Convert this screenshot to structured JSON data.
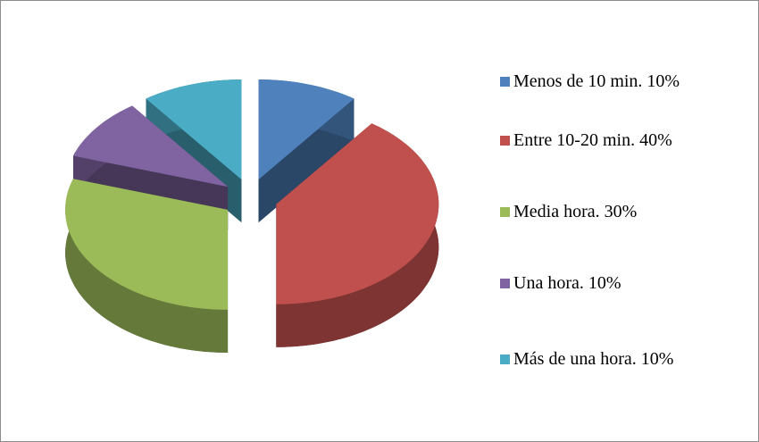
{
  "chart_data": {
    "type": "pie3d",
    "categories": [
      "Menos de 10 min. 10%",
      "Entre 10-20 min. 40%",
      "Media hora. 30%",
      "Una hora. 10%",
      "Más de una hora. 10%"
    ],
    "values": [
      10,
      40,
      30,
      10,
      10
    ],
    "colors": [
      "#4f81bd",
      "#c0504d",
      "#9bbb59",
      "#8064a2",
      "#4bacc6"
    ],
    "legend": "right"
  }
}
